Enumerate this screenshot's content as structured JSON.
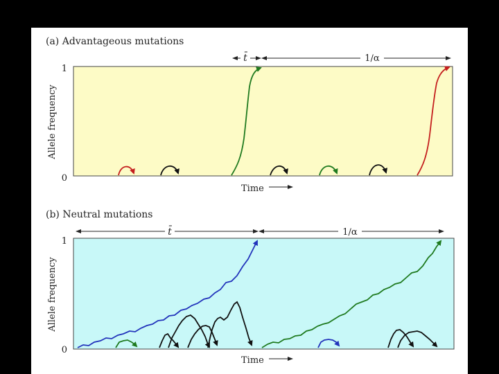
{
  "panels": [
    {
      "id": "a",
      "title": "(a) Advantageous mutations",
      "ylabel": "Allele frequency",
      "xlabel": "Time",
      "y_top_label": "1",
      "y_bottom_label": "0",
      "tbar_label": "t̄",
      "alpha_label": "1/α",
      "background": "#fdfbc6"
    },
    {
      "id": "b",
      "title": "(b) Neutral mutations",
      "ylabel": "Allele frequency",
      "xlabel": "Time",
      "y_top_label": "1",
      "y_bottom_label": "0",
      "tbar_label": "t̄",
      "alpha_label": "1/α",
      "background": "#c8f8f8"
    }
  ],
  "colors": {
    "page": "#ffffff",
    "outside": "#000000",
    "red": "#c41e1e",
    "green": "#1f7a1f",
    "blue": "#2233bb",
    "black": "#111111"
  }
}
